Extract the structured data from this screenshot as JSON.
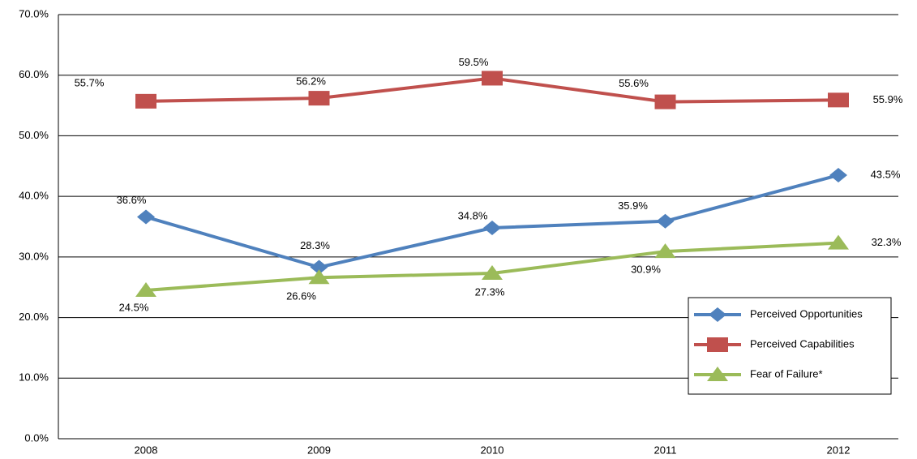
{
  "chart_data": {
    "type": "line",
    "categories": [
      "2008",
      "2009",
      "2010",
      "2011",
      "2012"
    ],
    "series": [
      {
        "name": "Perceived Opportunities",
        "color": "#4f81bd",
        "marker": "diamond",
        "values": [
          36.6,
          28.3,
          34.8,
          35.9,
          43.5
        ],
        "value_labels": [
          "36.6%",
          "28.3%",
          "34.8%",
          "35.9%",
          "43.5%"
        ]
      },
      {
        "name": "Perceived Capabilities",
        "color": "#c0504d",
        "marker": "square",
        "values": [
          55.7,
          56.2,
          59.5,
          55.6,
          55.9
        ],
        "value_labels": [
          "55.7%",
          "56.2%",
          "59.5%",
          "55.6%",
          "55.9%"
        ]
      },
      {
        "name": "Fear of Failure*",
        "color": "#9bbb59",
        "marker": "triangle",
        "values": [
          24.5,
          26.6,
          27.3,
          30.9,
          32.3
        ],
        "value_labels": [
          "24.5%",
          "26.6%",
          "27.3%",
          "30.9%",
          "32.3%"
        ]
      }
    ],
    "ylim": [
      0,
      70
    ],
    "yticks": [
      {
        "value": 0,
        "label": "0.0%"
      },
      {
        "value": 10,
        "label": "10.0%"
      },
      {
        "value": 20,
        "label": "20.0%"
      },
      {
        "value": 30,
        "label": "30.0%"
      },
      {
        "value": 40,
        "label": "40.0%"
      },
      {
        "value": 50,
        "label": "50.0%"
      },
      {
        "value": 60,
        "label": "60.0%"
      },
      {
        "value": 70,
        "label": "70.0%"
      }
    ],
    "grid": true
  }
}
